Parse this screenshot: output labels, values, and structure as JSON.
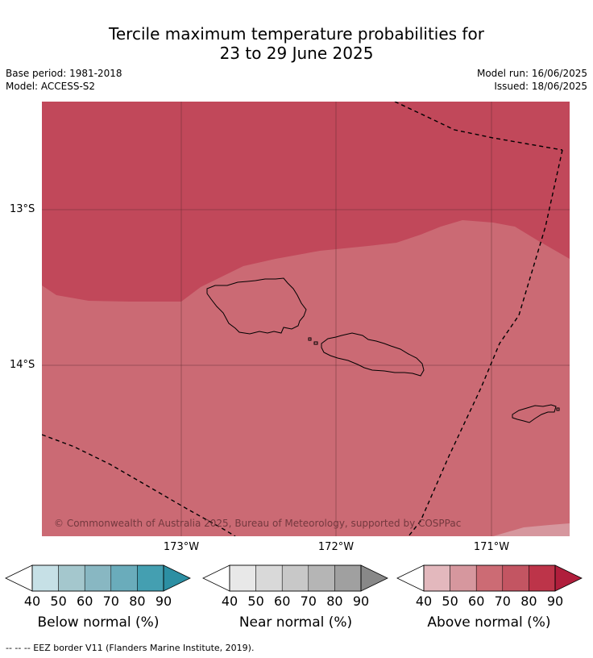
{
  "title_line1": "Tercile maximum temperature probabilities for",
  "title_line2": "23 to 29 June 2025",
  "base_period": "Base period: 1981-2018",
  "model": "Model: ACCESS-S2",
  "model_run": "Model run: 16/06/2025",
  "issued": "Issued: 18/06/2025",
  "copyright": "© Commonwealth of Australia 2025, Bureau of Meteorology, supported by COSPPac",
  "lat_labels": [
    "13°S",
    "14°S"
  ],
  "lon_labels": [
    "173°W",
    "172°W",
    "171°W"
  ],
  "footer": "--  --  -- EEZ border V11 (Flanders Marine Institute, 2019).",
  "legend": [
    {
      "title": "Below normal (%)",
      "colors": [
        "#c6e0e6",
        "#a4c7cd",
        "#88b7c2",
        "#6aacbb",
        "#449fb1"
      ],
      "arrow": "#2c8fa3"
    },
    {
      "title": "Near normal (%)",
      "colors": [
        "#e8e8e8",
        "#d9d9d9",
        "#c8c8c8",
        "#b5b5b5",
        "#a0a0a0"
      ],
      "arrow": "#888888"
    },
    {
      "title": "Above normal (%)",
      "colors": [
        "#e3b8bd",
        "#d6979e",
        "#cc6b74",
        "#c35562",
        "#bd3449"
      ],
      "arrow": "#b01e3c"
    }
  ],
  "tick_values": [
    "40",
    "50",
    "60",
    "70",
    "80",
    "90"
  ],
  "map_colors": {
    "above_80": "#c1485a",
    "above_70": "#cb6a74",
    "above_60": "#d6979e"
  }
}
